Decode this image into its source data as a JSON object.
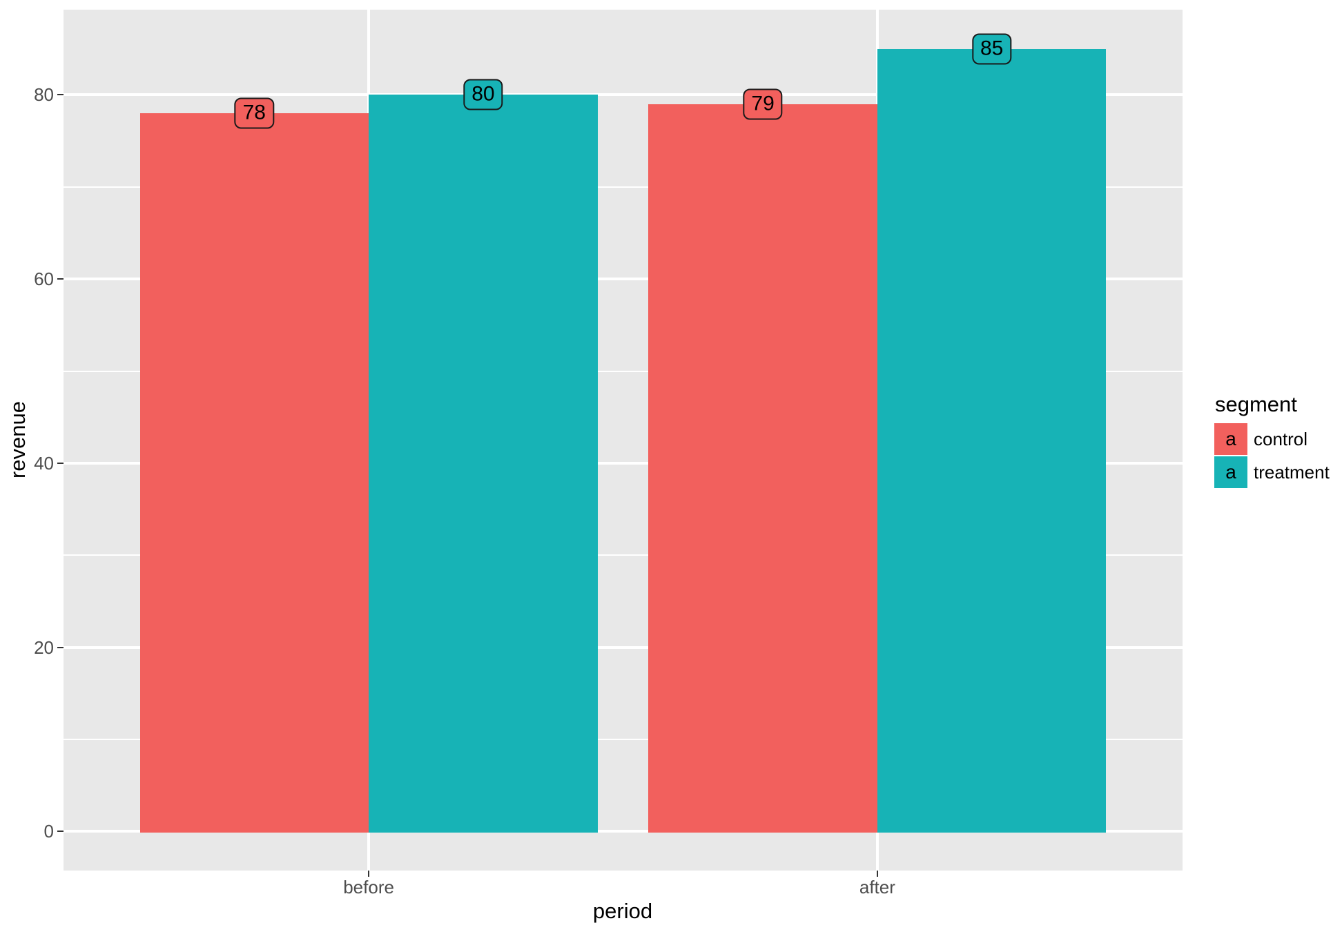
{
  "chart_data": {
    "type": "bar",
    "title": "",
    "xlabel": "period",
    "ylabel": "revenue",
    "categories": [
      "before",
      "after"
    ],
    "series": [
      {
        "name": "control",
        "color": "#F2605D",
        "values": [
          78,
          79
        ]
      },
      {
        "name": "treatment",
        "color": "#17B3B6",
        "values": [
          80,
          85
        ]
      }
    ],
    "bar_value_labels": [
      {
        "category": "before",
        "series": "control",
        "text": "78"
      },
      {
        "category": "before",
        "series": "treatment",
        "text": "80"
      },
      {
        "category": "after",
        "series": "control",
        "text": "79"
      },
      {
        "category": "after",
        "series": "treatment",
        "text": "85"
      }
    ],
    "ylim": [
      -4.25,
      89.25
    ],
    "yticks": [
      0,
      20,
      40,
      60,
      80
    ],
    "yticks_minor": [
      10,
      30,
      50,
      70
    ],
    "grid": {
      "panel_bg": "#E8E8E8",
      "major_color": "#FFFFFF",
      "minor_color": "#FFFFFF",
      "tick_mark_color": "#333333",
      "tick_text_color": "#4D4D4D"
    },
    "legend": {
      "title": "segment",
      "position": "right",
      "key_glyph": "a",
      "items": [
        {
          "label": "control",
          "color": "#F2605D"
        },
        {
          "label": "treatment",
          "color": "#17B3B6"
        }
      ]
    },
    "bar_width_fraction": 0.9
  }
}
